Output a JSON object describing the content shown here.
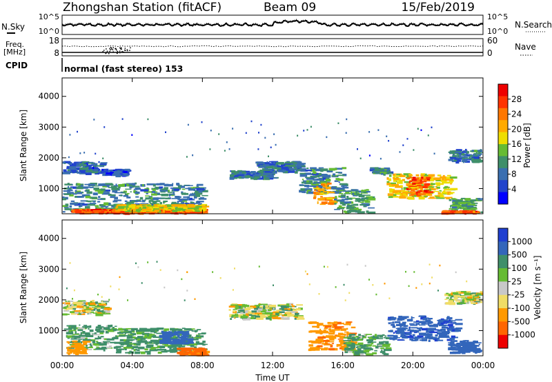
{
  "header": {
    "station": "Zhongshan Station (fitACF)",
    "beam": "Beam 09",
    "date": "15/Feb/2019"
  },
  "noise_panel": {
    "left_label": "N.Sky",
    "left_ticks": [
      "10^5",
      "10^0"
    ],
    "right_label": "N.Search",
    "right_ticks": [
      "10^5",
      "10^0"
    ]
  },
  "freq_panel": {
    "left_label_line1": "Freq.",
    "left_label_line2": "[MHz]",
    "left_ticks": [
      "18",
      "8"
    ],
    "right_label": "Nave",
    "right_ticks": [
      "60",
      "0"
    ]
  },
  "cpid": {
    "label": "CPID",
    "text": "normal (fast stereo) 153"
  },
  "colors": {
    "power_scale": [
      "#0000ff",
      "#2244cc",
      "#3a6fb0",
      "#3f8f6a",
      "#66bb33",
      "#eedd00",
      "#ffaa00",
      "#ff7700",
      "#ff3300",
      "#ee0000"
    ],
    "velocity_scale": [
      "#1f3fd0",
      "#3366bb",
      "#3f8f6a",
      "#66bb33",
      "#c8c8c8",
      "#f0dd66",
      "#ff9900",
      "#ff6600",
      "#ee0000"
    ]
  },
  "chart_data": [
    {
      "type": "heatmap",
      "title": "",
      "ylabel": "Slant Range [km]",
      "ylim": [
        180,
        4600
      ],
      "y_ticks": [
        "1000",
        "2000",
        "3000",
        "4000"
      ],
      "xlim": [
        "00:00",
        "24:00"
      ],
      "colorbar": {
        "label": "Power [dB]",
        "range": [
          0,
          32
        ],
        "tick_labels": [
          "4",
          "8",
          "12",
          "16",
          "20",
          "24",
          "28"
        ]
      },
      "regions": [
        {
          "t0": 0.0,
          "t1": 2.2,
          "r0": 1500,
          "r1": 1900,
          "v": 7
        },
        {
          "t0": 2.2,
          "t1": 3.6,
          "r0": 1450,
          "r1": 1650,
          "v": 6
        },
        {
          "t0": 0.0,
          "t1": 8.0,
          "r0": 250,
          "r1": 1200,
          "v": 10
        },
        {
          "t0": 0.5,
          "t1": 8.0,
          "r0": 200,
          "r1": 350,
          "v": 26
        },
        {
          "t0": 3.0,
          "t1": 8.0,
          "r0": 300,
          "r1": 500,
          "v": 18
        },
        {
          "t0": 9.5,
          "t1": 12.0,
          "r0": 1350,
          "r1": 1600,
          "v": 9
        },
        {
          "t0": 11.0,
          "t1": 13.5,
          "r0": 1550,
          "r1": 1900,
          "v": 8
        },
        {
          "t0": 13.5,
          "t1": 16.0,
          "r0": 900,
          "r1": 1700,
          "v": 10
        },
        {
          "t0": 14.3,
          "t1": 15.3,
          "r0": 500,
          "r1": 1200,
          "v": 22
        },
        {
          "t0": 15.5,
          "t1": 17.5,
          "r0": 250,
          "r1": 1000,
          "v": 12
        },
        {
          "t0": 18.5,
          "t1": 22.2,
          "r0": 700,
          "r1": 1500,
          "v": 18
        },
        {
          "t0": 19.6,
          "t1": 20.8,
          "r0": 800,
          "r1": 1400,
          "v": 26
        },
        {
          "t0": 17.5,
          "t1": 18.5,
          "r0": 1500,
          "r1": 1700,
          "v": 10
        },
        {
          "t0": 22.0,
          "t1": 24.0,
          "r0": 1900,
          "r1": 2300,
          "v": 9
        },
        {
          "t0": 22.0,
          "t1": 24.0,
          "r0": 250,
          "r1": 700,
          "v": 12
        },
        {
          "t0": 21.6,
          "t1": 23.5,
          "r0": 200,
          "r1": 300,
          "v": 26
        }
      ]
    },
    {
      "type": "heatmap",
      "title": "",
      "ylabel": "Slant Range [km]",
      "ylim": [
        180,
        4600
      ],
      "y_ticks": [
        "1000",
        "2000",
        "3000",
        "4000"
      ],
      "xlim": [
        "00:00",
        "24:00"
      ],
      "x_ticks": [
        "00:00",
        "04:00",
        "08:00",
        "12:00",
        "16:00",
        "20:00",
        "00:00"
      ],
      "xlabel": "Time UT",
      "colorbar": {
        "label": "Velocity [m s⁻¹]",
        "range": [
          -1200,
          1200
        ],
        "tick_labels": [
          "1000",
          "500",
          "100",
          "25",
          "-25",
          "-100",
          "-500",
          "-1000"
        ]
      },
      "regions": [
        {
          "t0": 0.0,
          "t1": 2.5,
          "r0": 1550,
          "r1": 2000,
          "v": 0
        },
        {
          "t0": 0.0,
          "t1": 3.0,
          "r0": 400,
          "r1": 1200,
          "v": 150
        },
        {
          "t0": 0.2,
          "t1": 1.2,
          "r0": 250,
          "r1": 700,
          "v": -300
        },
        {
          "t0": 3.0,
          "t1": 8.0,
          "r0": 300,
          "r1": 1100,
          "v": 200
        },
        {
          "t0": 5.5,
          "t1": 7.2,
          "r0": 600,
          "r1": 1000,
          "v": 800
        },
        {
          "t0": 6.5,
          "t1": 8.0,
          "r0": 200,
          "r1": 450,
          "v": -600
        },
        {
          "t0": 9.5,
          "t1": 13.5,
          "r0": 1400,
          "r1": 1900,
          "v": 0
        },
        {
          "t0": 14.0,
          "t1": 16.5,
          "r0": 400,
          "r1": 1300,
          "v": -400
        },
        {
          "t0": 16.0,
          "t1": 18.5,
          "r0": 250,
          "r1": 900,
          "v": 150
        },
        {
          "t0": 18.5,
          "t1": 22.5,
          "r0": 700,
          "r1": 1500,
          "v": 900
        },
        {
          "t0": 21.8,
          "t1": 24.0,
          "r0": 1900,
          "r1": 2300,
          "v": 0
        },
        {
          "t0": 22.0,
          "t1": 24.0,
          "r0": 300,
          "r1": 700,
          "v": 700
        }
      ]
    }
  ]
}
